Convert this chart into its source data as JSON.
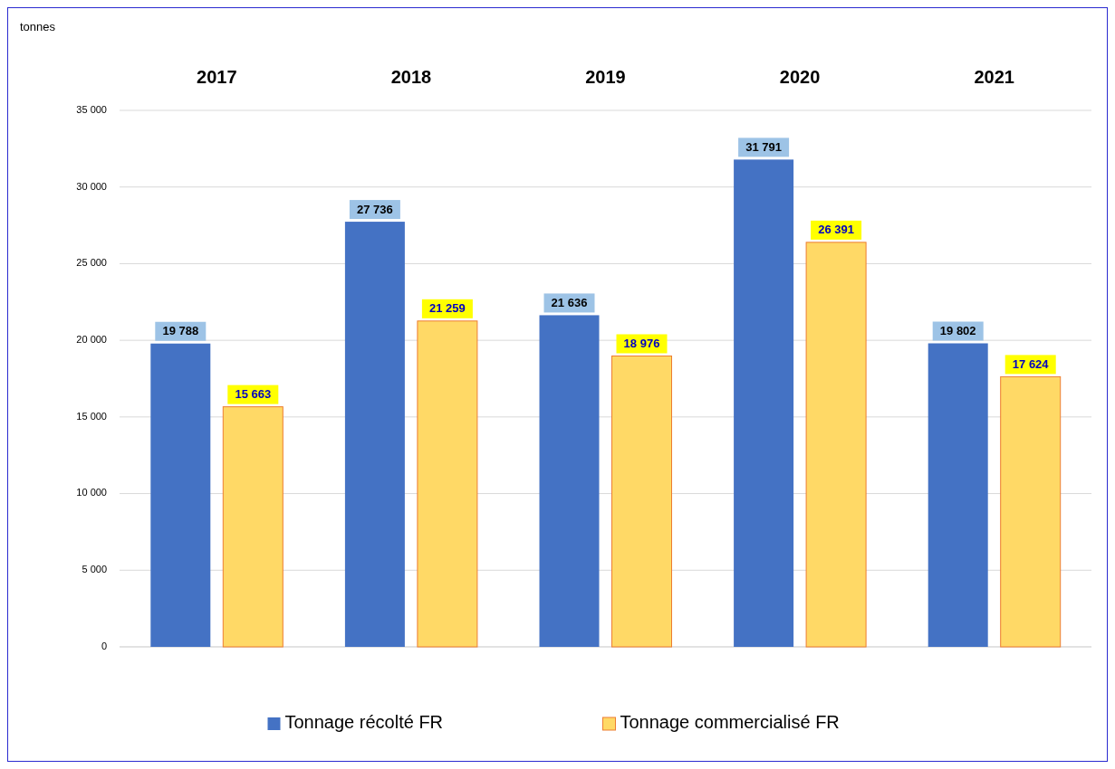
{
  "chart_data": {
    "type": "bar",
    "ylabel": "tonnes",
    "categories": [
      "2017",
      "2018",
      "2019",
      "2020",
      "2021"
    ],
    "series": [
      {
        "name": "Tonnage récolté FR",
        "color": "#4472c4",
        "values": [
          19788,
          27736,
          21636,
          31791,
          19802
        ],
        "value_labels": [
          "19 788",
          "27 736",
          "21 636",
          "31 791",
          "19 802"
        ]
      },
      {
        "name": "Tonnage commercialisé FR",
        "color": "#ffd966",
        "values": [
          15663,
          21259,
          18976,
          26391,
          17624
        ],
        "value_labels": [
          "15 663",
          "21 259",
          "18 976",
          "26 391",
          "17 624"
        ]
      }
    ],
    "ylim": [
      0,
      35000
    ],
    "yticks": [
      {
        "value": 0,
        "label": "0"
      },
      {
        "value": 5000,
        "label": "5 000"
      },
      {
        "value": 10000,
        "label": "10 000"
      },
      {
        "value": 15000,
        "label": "15 000"
      },
      {
        "value": 20000,
        "label": "20 000"
      },
      {
        "value": 25000,
        "label": "25 000"
      },
      {
        "value": 30000,
        "label": "30 000"
      },
      {
        "value": 35000,
        "label": "35 000"
      }
    ],
    "grid": "y",
    "legend": "bottom"
  }
}
